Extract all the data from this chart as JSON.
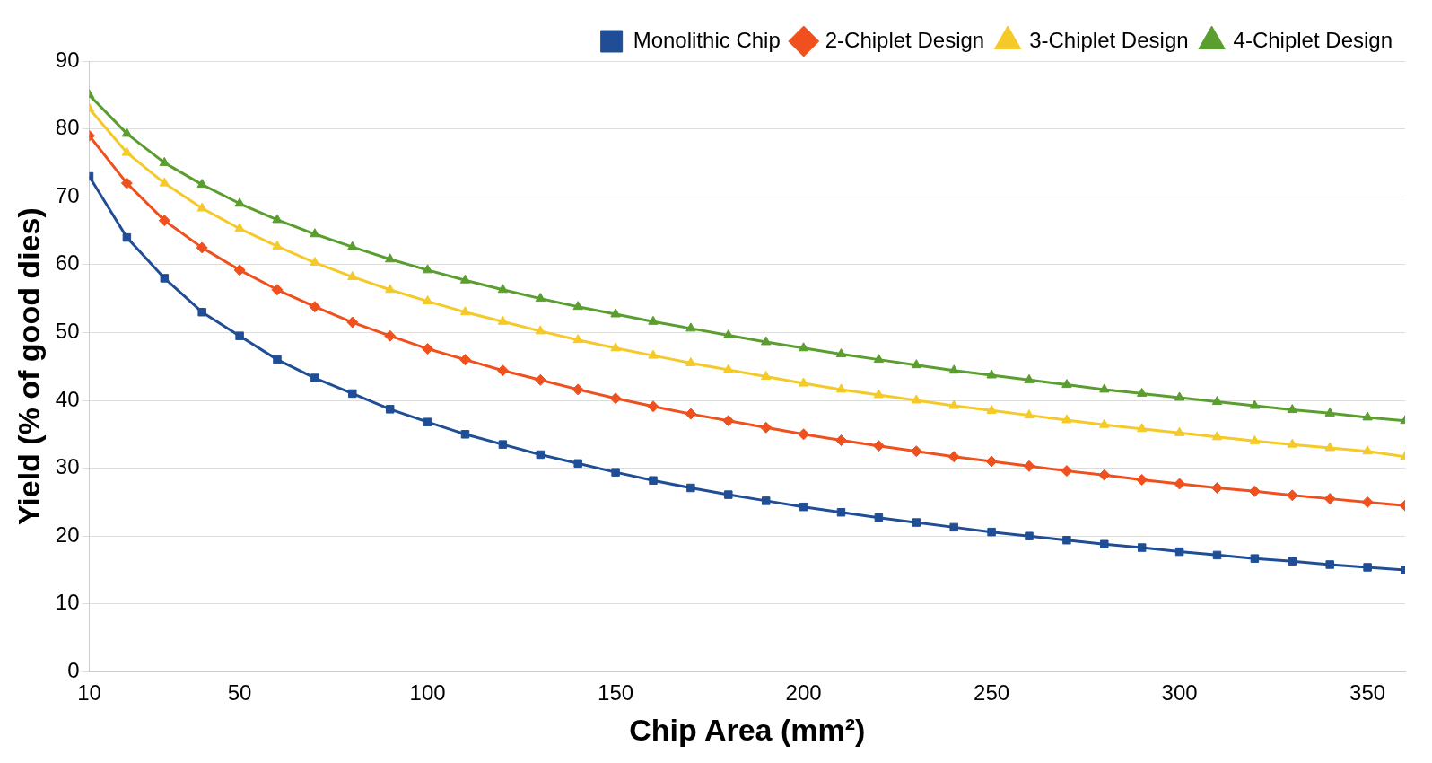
{
  "chart_data": {
    "type": "line",
    "xlabel": "Chip Area (mm²)",
    "ylabel": "Yield (% of good dies)",
    "x": [
      10,
      20,
      30,
      40,
      50,
      60,
      70,
      80,
      90,
      100,
      110,
      120,
      130,
      140,
      150,
      160,
      170,
      180,
      190,
      200,
      210,
      220,
      230,
      240,
      250,
      260,
      270,
      280,
      290,
      300,
      310,
      320,
      330,
      340,
      350,
      360
    ],
    "series": [
      {
        "name": "Monolithic Chip",
        "color": "#1f4e96",
        "marker": "square",
        "values": [
          73,
          64,
          58,
          53,
          49.5,
          46,
          43.3,
          41,
          38.7,
          36.8,
          35,
          33.5,
          32,
          30.7,
          29.4,
          28.2,
          27.1,
          26.1,
          25.2,
          24.3,
          23.5,
          22.7,
          22,
          21.3,
          20.6,
          20,
          19.4,
          18.8,
          18.3,
          17.7,
          17.2,
          16.7,
          16.3,
          15.8,
          15.4,
          15
        ]
      },
      {
        "name": "2-Chiplet Design",
        "color": "#f0501e",
        "marker": "diamond",
        "values": [
          79,
          72,
          66.5,
          62.5,
          59.2,
          56.3,
          53.8,
          51.5,
          49.5,
          47.6,
          46,
          44.4,
          43,
          41.6,
          40.3,
          39.1,
          38,
          37,
          36,
          35,
          34.1,
          33.3,
          32.5,
          31.7,
          31,
          30.3,
          29.6,
          29,
          28.3,
          27.7,
          27.1,
          26.6,
          26,
          25.5,
          25,
          24.5
        ]
      },
      {
        "name": "3-Chiplet Design",
        "color": "#f5c928",
        "marker": "triangle",
        "values": [
          83,
          76.5,
          72,
          68.3,
          65.3,
          62.7,
          60.3,
          58.2,
          56.3,
          54.6,
          53,
          51.6,
          50.2,
          48.9,
          47.7,
          46.6,
          45.5,
          44.5,
          43.5,
          42.5,
          41.6,
          40.8,
          40,
          39.2,
          38.5,
          37.8,
          37.1,
          36.4,
          35.8,
          35.2,
          34.6,
          34,
          33.5,
          33,
          32.5,
          31.7
        ]
      },
      {
        "name": "4-Chiplet Design",
        "color": "#5a9e2f",
        "marker": "triangle",
        "values": [
          85,
          79.3,
          75,
          71.8,
          69,
          66.6,
          64.5,
          62.6,
          60.8,
          59.2,
          57.7,
          56.3,
          55,
          53.8,
          52.7,
          51.6,
          50.6,
          49.6,
          48.6,
          47.7,
          46.8,
          46,
          45.2,
          44.4,
          43.7,
          43,
          42.3,
          41.6,
          41,
          40.4,
          39.8,
          39.2,
          38.6,
          38.1,
          37.5,
          37
        ]
      }
    ],
    "xlim": [
      10,
      360
    ],
    "xticks": [
      10,
      50,
      100,
      150,
      200,
      250,
      300,
      350
    ],
    "ylim": [
      0,
      90
    ],
    "yticks": [
      0,
      10,
      20,
      30,
      40,
      50,
      60,
      70,
      80,
      90
    ],
    "grid": "y",
    "legend": "top right",
    "line_style": "solid"
  }
}
